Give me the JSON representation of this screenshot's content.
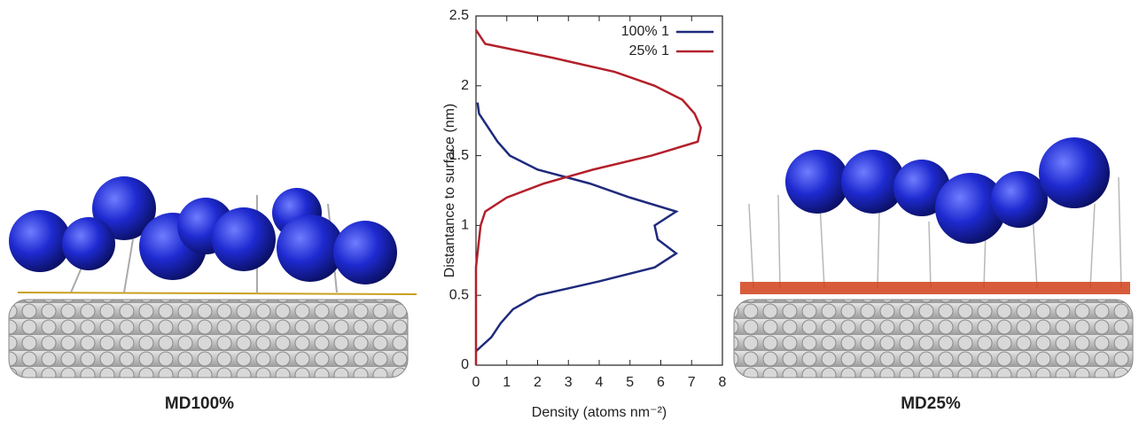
{
  "chart_data": {
    "type": "line",
    "xlabel": "Density (atoms nm⁻²)",
    "ylabel": "Distantance to surface (nm)",
    "xlim": [
      0,
      8
    ],
    "xticks": [
      0,
      1,
      2,
      3,
      4,
      5,
      6,
      7,
      8
    ],
    "ylim": [
      0,
      2.5
    ],
    "yticks": [
      0,
      0.5,
      1,
      1.5,
      2,
      2.5
    ],
    "grid": false,
    "legend": "upper right",
    "annotations": [
      "MD100%",
      "MD25%"
    ],
    "series": [
      {
        "name": "100% 1",
        "color": "#1f2a7c",
        "x": [
          0.05,
          0.1,
          0.7,
          1.1,
          2,
          3.7,
          5,
          6.5,
          5.8,
          5.9,
          6.5,
          5.8,
          4,
          2,
          1.2,
          0.8,
          0.5,
          0
        ],
        "values": [
          1.88,
          1.8,
          1.6,
          1.5,
          1.4,
          1.3,
          1.2,
          1.1,
          1.0,
          0.9,
          0.8,
          0.7,
          0.6,
          0.5,
          0.4,
          0.3,
          0.2,
          0.1
        ]
      },
      {
        "name": "25% 1",
        "color": "#b3202b",
        "x": [
          0,
          0.3,
          2.5,
          4.5,
          5.8,
          6.7,
          7.1,
          7.3,
          7.2,
          5.7,
          3.8,
          2.2,
          1,
          0.3,
          0.15,
          0.1,
          0.05,
          0,
          0
        ],
        "values": [
          2.4,
          2.3,
          2.2,
          2.1,
          2.0,
          1.9,
          1.8,
          1.7,
          1.6,
          1.5,
          1.4,
          1.3,
          1.2,
          1.1,
          1.0,
          0.9,
          0.8,
          0.7,
          0
        ]
      }
    ]
  }
}
